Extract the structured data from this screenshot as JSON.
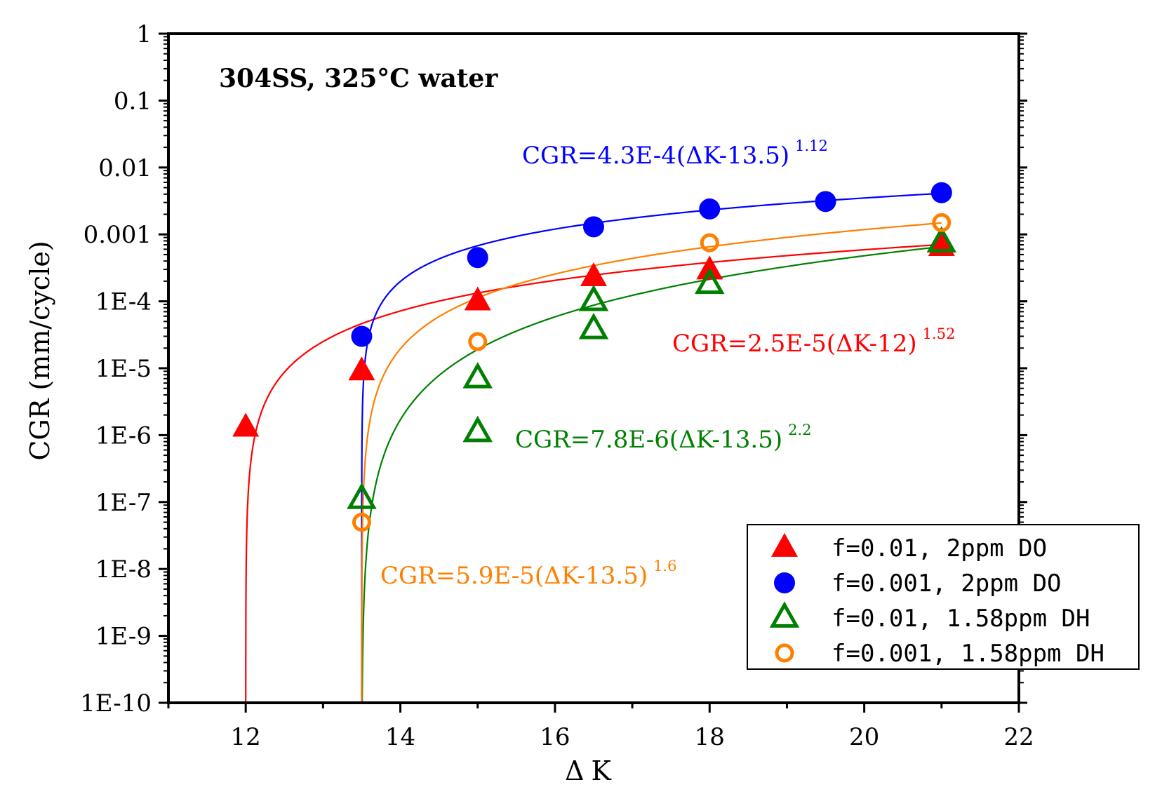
{
  "chart_data": {
    "type": "scatter",
    "title": "",
    "xlabel": "ΔK",
    "ylabel": "CGR (mm/cycle)",
    "xlim": [
      11,
      22
    ],
    "ylim": [
      1e-10,
      1
    ],
    "yscale": "log",
    "x_ticks": [
      12,
      14,
      16,
      18,
      20,
      22
    ],
    "y_ticks": [
      {
        "value": 1,
        "label": "1"
      },
      {
        "value": 0.1,
        "label": "0.1"
      },
      {
        "value": 0.01,
        "label": "0.01"
      },
      {
        "value": 0.001,
        "label": "0.001"
      },
      {
        "value": 0.0001,
        "label": "1E-4"
      },
      {
        "value": 1e-05,
        "label": "1E-5"
      },
      {
        "value": 1e-06,
        "label": "1E-6"
      },
      {
        "value": 1e-07,
        "label": "1E-7"
      },
      {
        "value": 1e-08,
        "label": "1E-8"
      },
      {
        "value": 1e-09,
        "label": "1E-9"
      },
      {
        "value": 1e-10,
        "label": "1E-10"
      }
    ],
    "annotation": "304SS, 325°C water",
    "series": [
      {
        "name": "f=0.01, 2ppm DO",
        "marker": "triangle-filled",
        "color": "#ff0000",
        "points": [
          [
            12,
            1.3e-06
          ],
          [
            13.5,
            9e-06
          ],
          [
            15,
            0.0001
          ],
          [
            16.5,
            0.00023
          ],
          [
            18,
            0.00029
          ],
          [
            21,
            0.00065
          ]
        ],
        "fit": {
          "a": 2.5e-05,
          "k0": 12,
          "n": 1.52
        },
        "equation": {
          "main": "CGR=2.5E-5(ΔK-12)",
          "exp": "1.52"
        }
      },
      {
        "name": "f=0.001, 2ppm DO",
        "marker": "circle-filled",
        "color": "#0000ff",
        "points": [
          [
            13.5,
            3e-05
          ],
          [
            15,
            0.00045
          ],
          [
            16.5,
            0.0013
          ],
          [
            18,
            0.0024
          ],
          [
            19.5,
            0.0031
          ],
          [
            21,
            0.0042
          ]
        ],
        "fit": {
          "a": 0.00043,
          "k0": 13.5,
          "n": 1.12
        },
        "equation": {
          "main": "CGR=4.3E-4(ΔK-13.5)",
          "exp": "1.12"
        }
      },
      {
        "name": "f=0.01, 1.58ppm DH",
        "marker": "triangle-open",
        "color": "#008000",
        "points": [
          [
            13.5,
            1.1e-07
          ],
          [
            15,
            7e-06
          ],
          [
            15,
            1.1e-06
          ],
          [
            16.5,
            0.0001
          ],
          [
            16.5,
            3.8e-05
          ],
          [
            18,
            0.00018
          ],
          [
            21,
            0.00075
          ]
        ],
        "fit": {
          "a": 7.8e-06,
          "k0": 13.5,
          "n": 2.2
        },
        "equation": {
          "main": "CGR=7.8E-6(ΔK-13.5)",
          "exp": "2.2"
        }
      },
      {
        "name": "f=0.001, 1.58ppm DH",
        "marker": "circle-open",
        "color": "#ff7f00",
        "points": [
          [
            13.5,
            5e-08
          ],
          [
            15,
            2.5e-05
          ],
          [
            18,
            0.00075
          ],
          [
            21,
            0.0015
          ]
        ],
        "fit": {
          "a": 5.9e-05,
          "k0": 13.5,
          "n": 1.6
        },
        "equation": {
          "main": "CGR=5.9E-5(ΔK-13.5)",
          "exp": "1.6"
        }
      }
    ],
    "legend": {
      "placement": "bottom-right"
    }
  }
}
